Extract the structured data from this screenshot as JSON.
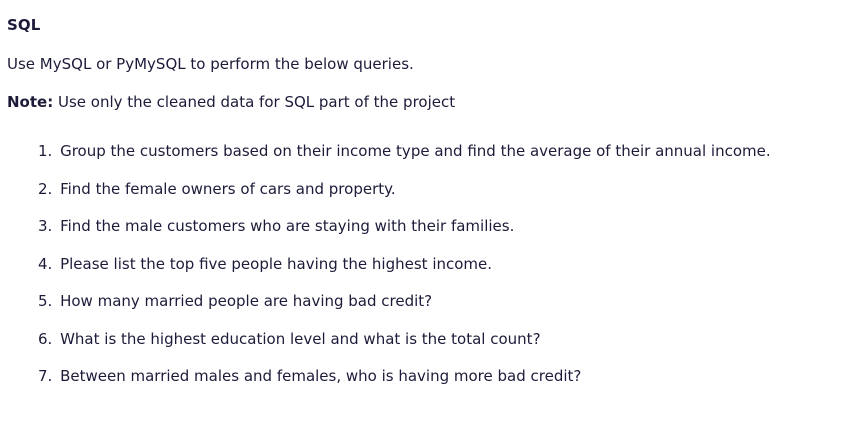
{
  "heading": "SQL",
  "intro": "Use MySQL or PyMySQL to perform the below queries.",
  "note": {
    "label": "Note:",
    "text": " Use only the cleaned data for SQL part of the project"
  },
  "questions": [
    {
      "num": "1.",
      "text": "Group the customers based on their income type and find the average of their annual income."
    },
    {
      "num": "2.",
      "text": "Find the female owners of cars and property."
    },
    {
      "num": "3.",
      "text": "Find the male customers who are staying with their families."
    },
    {
      "num": "4.",
      "text": "Please list the top five people having the highest income."
    },
    {
      "num": "5.",
      "text": "How many married people are having bad credit?"
    },
    {
      "num": "6.",
      "text": "What is the highest education level and what is the total count?"
    },
    {
      "num": "7.",
      "text": "Between married males and females, who is having more bad credit?"
    }
  ]
}
